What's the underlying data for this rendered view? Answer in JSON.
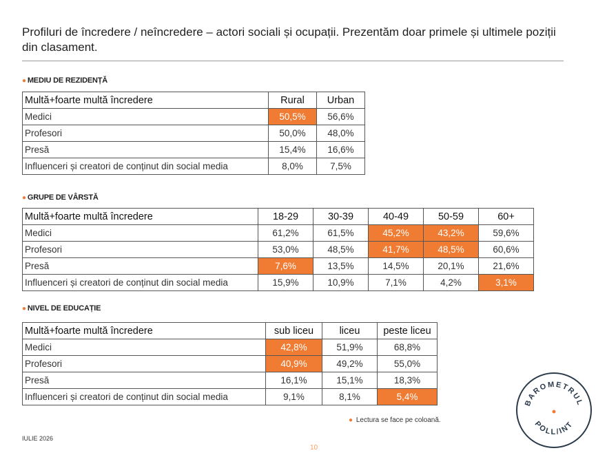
{
  "title": "Profiluri de încredere / neîncredere – actori sociali și ocupații. Prezentăm doar primele și ultimele poziții din clasament.",
  "accent_color": "#f07c34",
  "sections": [
    {
      "heading": "MEDIU DE REZIDENȚĂ",
      "header": [
        "Multă+foarte multă încredere",
        "Rural",
        "Urban"
      ],
      "rows": [
        {
          "label": "Medici",
          "values": [
            "50,5%",
            "56,6%"
          ],
          "highlight": [
            true,
            false
          ]
        },
        {
          "label": "Profesori",
          "values": [
            "50,0%",
            "48,0%"
          ],
          "highlight": [
            false,
            false
          ]
        },
        {
          "label": "Presă",
          "values": [
            "15,4%",
            "16,6%"
          ],
          "highlight": [
            false,
            false
          ]
        },
        {
          "label": "Influenceri și creatori de conținut din social media",
          "values": [
            "8,0%",
            "7,5%"
          ],
          "highlight": [
            false,
            false
          ]
        }
      ]
    },
    {
      "heading": "GRUPE DE VÂRSTĂ",
      "header": [
        "Multă+foarte multă încredere",
        "18-29",
        "30-39",
        "40-49",
        "50-59",
        "60+"
      ],
      "rows": [
        {
          "label": "Medici",
          "values": [
            "61,2%",
            "61,5%",
            "45,2%",
            "43,2%",
            "59,6%"
          ],
          "highlight": [
            false,
            false,
            true,
            true,
            false
          ]
        },
        {
          "label": "Profesori",
          "values": [
            "53,0%",
            "48,5%",
            "41,7%",
            "48,5%",
            "60,6%"
          ],
          "highlight": [
            false,
            false,
            true,
            true,
            false
          ]
        },
        {
          "label": "Presă",
          "values": [
            "7,6%",
            "13,5%",
            "14,5%",
            "20,1%",
            "21,6%"
          ],
          "highlight": [
            true,
            false,
            false,
            false,
            false
          ]
        },
        {
          "label": "Influenceri și creatori de conținut din social media",
          "values": [
            "15,9%",
            "10,9%",
            "7,1%",
            "4,2%",
            "3,1%"
          ],
          "highlight": [
            false,
            false,
            false,
            false,
            true
          ]
        }
      ]
    },
    {
      "heading": "NIVEL DE EDUCAȚIE",
      "header": [
        "Multă+foarte multă încredere",
        "sub liceu",
        "liceu",
        "peste liceu"
      ],
      "rows": [
        {
          "label": "Medici",
          "values": [
            "42,8%",
            "51,9%",
            "68,8%"
          ],
          "highlight": [
            true,
            false,
            false
          ]
        },
        {
          "label": "Profesori",
          "values": [
            "40,9%",
            "49,2%",
            "55,0%"
          ],
          "highlight": [
            true,
            false,
            false
          ]
        },
        {
          "label": "Presă",
          "values": [
            "16,1%",
            "15,1%",
            "18,3%"
          ],
          "highlight": [
            false,
            false,
            false
          ]
        },
        {
          "label": "Influenceri și creatori de conținut din social media",
          "values": [
            "9,1%",
            "8,1%",
            "5,4%"
          ],
          "highlight": [
            false,
            false,
            true
          ]
        }
      ]
    }
  ],
  "note": "Lectura se face pe coloană.",
  "date": "IULIE 2026",
  "page_number": "10",
  "logo": {
    "top_text": "BAROMETRUL",
    "bottom_text": "POLL/INT"
  }
}
